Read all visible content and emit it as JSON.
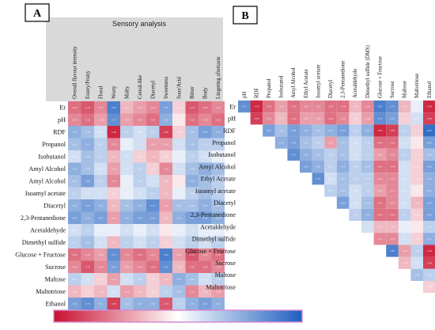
{
  "colors": {
    "negative": "#c8102e",
    "neutral": "#ffffff",
    "positive": "#1f5fbf",
    "header_bg": "#d9d9d9",
    "colorbar_border": "#d48bcf"
  },
  "chart_data": [
    {
      "type": "heatmap",
      "panel": "A",
      "title": "Sensory analysis",
      "colorbar_range": [
        -1,
        1
      ],
      "columns": [
        "Overall flavour intensity",
        "Estery/Fruity",
        "Floral",
        "Worty",
        "Malty",
        "Cereal-like",
        "Diacetyl",
        "Sweetness",
        "Sour/Acid",
        "Bitter",
        "Body",
        "Lingering aftertaste"
      ],
      "rows": [
        "Er",
        "pH",
        "RDF",
        "Propanol",
        "Isobutanol",
        "Amyl Alcohol",
        "Amyl Alcohol",
        "Isoamyl acetate",
        "Diacetyl",
        "2,3-Pentanedione",
        "Acetaldehyde",
        "Dimethyl sulfide",
        "Glucose + Fructose",
        "Sucrose",
        "Maltose",
        "Maltotriose",
        "Ethanol"
      ],
      "values": [
        [
          -0.6,
          -0.7,
          -0.5,
          0.8,
          -0.3,
          -0.4,
          -0.5,
          0.6,
          -0.2,
          -0.7,
          -0.6,
          -0.5
        ],
        [
          -0.5,
          -0.6,
          -0.4,
          0.7,
          -0.4,
          -0.5,
          -0.6,
          0.5,
          -0.1,
          -0.6,
          -0.5,
          -0.6
        ],
        [
          0.5,
          0.4,
          0.2,
          -0.9,
          0.3,
          0.2,
          0.3,
          -0.8,
          -0.2,
          0.4,
          0.6,
          0.5
        ],
        [
          0.4,
          0.5,
          0.3,
          -0.5,
          0.1,
          0.2,
          -0.4,
          -0.4,
          0.2,
          0.4,
          0.3,
          0.3
        ],
        [
          0.2,
          0.4,
          0.3,
          -0.3,
          0.2,
          -0.2,
          -0.3,
          -0.2,
          0.1,
          0.3,
          0.2,
          0.1
        ],
        [
          0.5,
          0.4,
          0.2,
          -0.4,
          0.2,
          0.3,
          -0.2,
          -0.5,
          0.2,
          0.4,
          0.5,
          0.4
        ],
        [
          0.4,
          0.6,
          0.3,
          -0.5,
          0.1,
          0.3,
          0.2,
          -0.3,
          -0.1,
          0.5,
          0.4,
          0.3
        ],
        [
          0.3,
          0.2,
          0.2,
          -0.2,
          0.1,
          0.2,
          0.3,
          -0.3,
          0.1,
          0.3,
          0.4,
          0.3
        ],
        [
          0.5,
          0.6,
          0.5,
          -0.3,
          0.4,
          0.5,
          0.7,
          -0.4,
          0.4,
          0.4,
          0.5,
          0.4
        ],
        [
          0.6,
          0.5,
          0.6,
          -0.4,
          0.5,
          0.6,
          0.6,
          -0.3,
          0.5,
          0.6,
          0.6,
          0.5
        ],
        [
          0.2,
          0.3,
          0.1,
          0.1,
          0.2,
          0.1,
          0.2,
          -0.1,
          0.1,
          0.2,
          0.1,
          0.1
        ],
        [
          0.3,
          0.4,
          0.2,
          -0.3,
          0.3,
          0.2,
          0.3,
          -0.2,
          0.2,
          0.3,
          0.2,
          0.3
        ],
        [
          -0.6,
          -0.5,
          -0.4,
          0.7,
          -0.5,
          -0.6,
          -0.5,
          0.8,
          -0.4,
          -0.7,
          -0.5,
          -0.6
        ],
        [
          -0.5,
          -0.7,
          -0.5,
          0.6,
          -0.4,
          -0.5,
          -0.6,
          0.7,
          -0.3,
          -0.6,
          -0.6,
          -0.5
        ],
        [
          0.3,
          0.2,
          -0.2,
          -0.4,
          0.2,
          0.3,
          -0.2,
          -0.3,
          0.5,
          0.4,
          0.2,
          0.3
        ],
        [
          -0.3,
          -0.2,
          -0.3,
          0.2,
          -0.4,
          -0.3,
          -0.2,
          0.3,
          0.4,
          -0.5,
          -0.3,
          -0.4
        ],
        [
          0.6,
          0.7,
          0.5,
          -0.8,
          0.4,
          0.5,
          0.5,
          -0.7,
          0.3,
          0.5,
          0.6,
          0.5
        ]
      ]
    },
    {
      "type": "heatmap",
      "panel": "B",
      "shape": "lower-triangle",
      "columns": [
        "pH",
        "RDF",
        "Propanol",
        "Isobutanol",
        "Amyl Alcohol",
        "Ethyl Acetate",
        "Isoamyl acetate",
        "Diacetyl",
        "2,3-Pentanedione",
        "Acetaldehyde",
        "Dimethyl sulfide (DMS)",
        "Glucose + Fructose",
        "Sucrose",
        "Maltose",
        "Maltotriose",
        "Ethanol"
      ],
      "rows": [
        "Er",
        "pH",
        "RDF",
        "Propanol",
        "Isobutanol",
        "Amyl Alcohol",
        "Ethyl Acetate",
        "Isoamyl acetate",
        "Diacetyl",
        "2,3-Pentanedione",
        "Acetaldehyde",
        "Dimethyl sulfide",
        "Glucose + Fructose",
        "Sucrose",
        "Maltose",
        "Maltotriose"
      ],
      "values": [
        [
          0.7,
          -0.9,
          -0.6,
          -0.4,
          -0.6,
          -0.5,
          -0.5,
          -0.6,
          -0.6,
          -0.3,
          -0.5,
          0.8,
          0.7,
          -0.3,
          0.1,
          -0.9
        ],
        [
          null,
          -0.8,
          -0.5,
          -0.3,
          -0.6,
          -0.4,
          -0.4,
          -0.6,
          -0.5,
          -0.2,
          -0.4,
          0.7,
          0.6,
          -0.2,
          0.2,
          -0.8
        ],
        [
          null,
          null,
          0.6,
          0.4,
          0.6,
          0.5,
          0.4,
          0.5,
          0.6,
          0.3,
          0.5,
          -0.9,
          -0.8,
          0.3,
          -0.2,
          0.9
        ],
        [
          null,
          null,
          null,
          0.5,
          0.6,
          0.4,
          0.3,
          -0.4,
          0.4,
          0.2,
          0.3,
          -0.6,
          -0.6,
          0.2,
          -0.1,
          0.6
        ],
        [
          null,
          null,
          null,
          null,
          0.7,
          0.5,
          0.4,
          0.3,
          0.4,
          0.2,
          0.3,
          -0.4,
          -0.5,
          0.3,
          -0.2,
          0.4
        ],
        [
          null,
          null,
          null,
          null,
          null,
          0.6,
          0.5,
          0.3,
          0.5,
          0.3,
          0.4,
          -0.6,
          -0.6,
          0.2,
          -0.2,
          0.6
        ],
        [
          null,
          null,
          null,
          null,
          null,
          null,
          0.7,
          0.2,
          0.4,
          0.3,
          0.3,
          -0.5,
          -0.5,
          0.2,
          -0.2,
          0.5
        ],
        [
          null,
          null,
          null,
          null,
          null,
          null,
          null,
          0.3,
          0.4,
          0.2,
          0.3,
          -0.4,
          -0.5,
          0.2,
          -0.1,
          0.5
        ],
        [
          null,
          null,
          null,
          null,
          null,
          null,
          null,
          null,
          0.6,
          0.2,
          0.4,
          -0.6,
          -0.5,
          0.2,
          -0.3,
          0.6
        ],
        [
          null,
          null,
          null,
          null,
          null,
          null,
          null,
          null,
          null,
          0.3,
          0.5,
          -0.6,
          -0.6,
          0.3,
          -0.2,
          0.6
        ],
        [
          null,
          null,
          null,
          null,
          null,
          null,
          null,
          null,
          null,
          null,
          0.2,
          -0.3,
          -0.3,
          0.1,
          -0.1,
          0.3
        ],
        [
          null,
          null,
          null,
          null,
          null,
          null,
          null,
          null,
          null,
          null,
          null,
          -0.5,
          -0.5,
          0.2,
          -0.2,
          0.5
        ],
        [
          null,
          null,
          null,
          null,
          null,
          null,
          null,
          null,
          null,
          null,
          null,
          null,
          0.8,
          -0.4,
          0.3,
          -0.9
        ],
        [
          null,
          null,
          null,
          null,
          null,
          null,
          null,
          null,
          null,
          null,
          null,
          null,
          null,
          -0.3,
          0.2,
          -0.8
        ],
        [
          null,
          null,
          null,
          null,
          null,
          null,
          null,
          null,
          null,
          null,
          null,
          null,
          null,
          null,
          0.4,
          0.3
        ],
        [
          null,
          null,
          null,
          null,
          null,
          null,
          null,
          null,
          null,
          null,
          null,
          null,
          null,
          null,
          null,
          -0.2
        ]
      ]
    }
  ]
}
